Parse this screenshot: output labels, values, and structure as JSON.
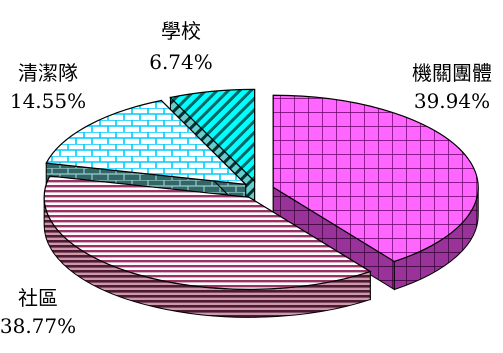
{
  "chart_data": {
    "type": "pie",
    "title": "",
    "categories": [
      "機關團體",
      "社區",
      "清潔隊",
      "學校"
    ],
    "values": [
      39.94,
      38.77,
      14.55,
      6.74
    ],
    "value_labels": [
      "39.94%",
      "38.77%",
      "14.55%",
      "6.74%"
    ],
    "exploded": true,
    "three_d": true,
    "legend": "none",
    "colors": {
      "機關團體": "#ff66ff",
      "社區": "#993366",
      "清潔隊": "#00ccff",
      "學校": "#00ffff"
    }
  }
}
